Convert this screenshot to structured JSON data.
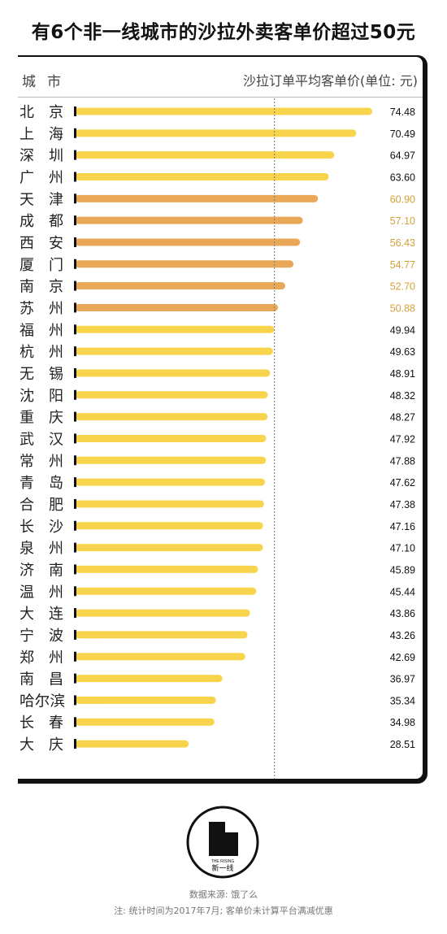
{
  "title": "有6个非一线城市的沙拉外卖客单价超过50元",
  "header": {
    "city_label": "城市",
    "metric_label": "沙拉订单平均客单价(单位: 元)"
  },
  "colors": {
    "yellow_bar": "#f8d44c",
    "orange_bar": "#e9a857",
    "orange_text": "#d4a13a",
    "black_text": "#111111"
  },
  "chart_data": {
    "type": "bar",
    "orientation": "horizontal",
    "title": "有6个非一线城市的沙拉外卖客单价超过50元",
    "reference_line": 50,
    "categories": [
      "北京",
      "上海",
      "深圳",
      "广州",
      "天津",
      "成都",
      "西安",
      "厦门",
      "南京",
      "苏州",
      "福州",
      "杭州",
      "无锡",
      "沈阳",
      "重庆",
      "武汉",
      "常州",
      "青岛",
      "合肥",
      "长沙",
      "泉州",
      "济南",
      "温州",
      "大连",
      "宁波",
      "郑州",
      "南昌",
      "哈尔滨",
      "长春",
      "大庆"
    ],
    "values": [
      74.48,
      70.49,
      64.97,
      63.6,
      60.9,
      57.1,
      56.43,
      54.77,
      52.7,
      50.88,
      49.94,
      49.63,
      48.91,
      48.32,
      48.27,
      47.92,
      47.88,
      47.62,
      47.38,
      47.16,
      47.1,
      45.89,
      45.44,
      43.86,
      43.26,
      42.69,
      36.97,
      35.34,
      34.98,
      28.51
    ],
    "value_labels": [
      "74.48",
      "70.49",
      "64.97",
      "63.60",
      "60.90",
      "57.10",
      "56.43",
      "54.77",
      "52.70",
      "50.88",
      "49.94",
      "49.63",
      "48.91",
      "48.32",
      "48.27",
      "47.92",
      "47.88",
      "47.62",
      "47.38",
      "47.16",
      "47.10",
      "45.89",
      "45.44",
      "43.86",
      "43.26",
      "42.69",
      "36.97",
      "35.34",
      "34.98",
      "28.51"
    ],
    "highlight": [
      false,
      false,
      false,
      false,
      true,
      true,
      true,
      true,
      true,
      true,
      false,
      false,
      false,
      false,
      false,
      false,
      false,
      false,
      false,
      false,
      false,
      false,
      false,
      false,
      false,
      false,
      false,
      false,
      false,
      false
    ],
    "xlim": [
      0,
      80
    ],
    "grid": false
  },
  "logo": {
    "brand_text": "新一线",
    "sub_text": "THE RISING"
  },
  "footer": {
    "source": "数据来源: 饿了么",
    "note": "注: 统计时间为2017年7月; 客单价未计算平台满减优惠"
  }
}
